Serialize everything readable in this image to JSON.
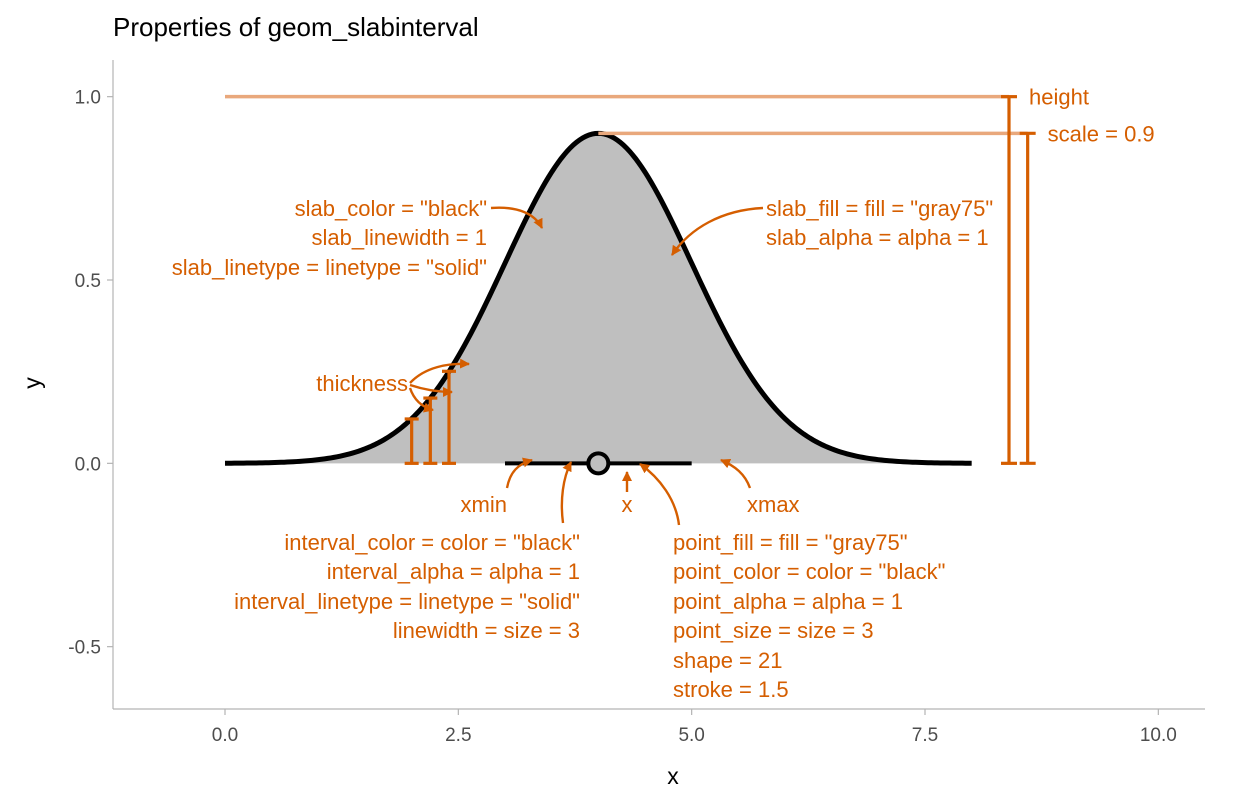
{
  "chart_data": {
    "type": "area",
    "title": "Properties of geom_slabinterval",
    "xlabel": "x",
    "ylabel": "y",
    "xlim": [
      -1.2,
      10.5
    ],
    "ylim": [
      -0.67,
      1.1
    ],
    "x_ticks": [
      0,
      2.5,
      5,
      7.5,
      10
    ],
    "x_tick_labels": [
      "0.0",
      "2.5",
      "5.0",
      "7.5",
      "10.0"
    ],
    "y_ticks": [
      -0.5,
      0,
      0.5,
      1
    ],
    "y_tick_labels": [
      "-0.5",
      "0.0",
      "0.5",
      "1.0"
    ],
    "grid": false,
    "colors": {
      "annotation": "#d55e00",
      "reference": "#e9a87c",
      "slab_fill": "#bfbfbf",
      "line": "#000000"
    },
    "slab": {
      "distribution": "normal",
      "mean": 4,
      "sd": 1,
      "x_range": [
        0,
        8
      ],
      "scale": 0.9,
      "height": 1
    },
    "interval": {
      "xmin": 3,
      "xmax": 5
    },
    "point": {
      "x": 4,
      "y": 0
    },
    "thickness_bars": [
      {
        "x": 2.0,
        "y": 0.121
      },
      {
        "x": 2.2,
        "y": 0.178
      },
      {
        "x": 2.4,
        "y": 0.251
      }
    ],
    "brackets": [
      {
        "x": 8.4,
        "top": 1.0,
        "label": "height"
      },
      {
        "x": 8.6,
        "top": 0.9,
        "label": "scale = 0.9"
      }
    ],
    "annotations": {
      "slab_left": [
        "slab_color = \"black\"",
        "slab_linewidth = 1",
        "slab_linetype = linetype = \"solid\""
      ],
      "slab_right": [
        "slab_fill = fill = \"gray75\"",
        "slab_alpha = alpha = 1"
      ],
      "thickness": "thickness",
      "xmin": "xmin",
      "x": "x",
      "xmax": "xmax",
      "interval": [
        "interval_color = color = \"black\"",
        "interval_alpha = alpha = 1",
        "interval_linetype = linetype = \"solid\"",
        "linewidth = size = 3"
      ],
      "point": [
        "point_fill = fill = \"gray75\"",
        "point_color = color = \"black\"",
        "point_alpha = alpha = 1",
        "point_size = size = 3",
        "shape = 21",
        "stroke = 1.5"
      ]
    }
  }
}
